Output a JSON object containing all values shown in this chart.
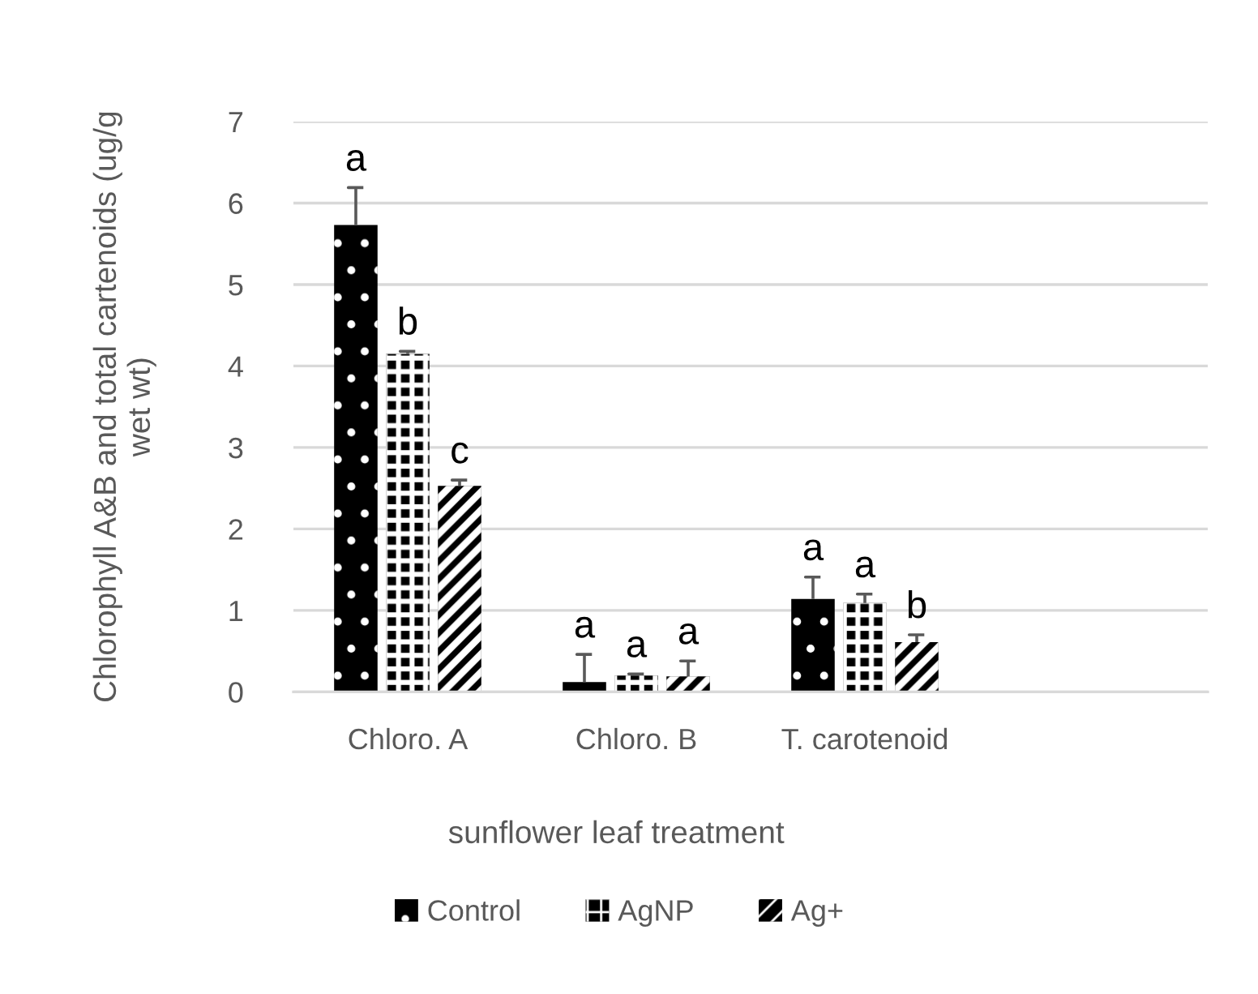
{
  "chart_data": {
    "type": "bar",
    "categories": [
      "Chloro. A",
      "Chloro. B",
      "T. carotenoid",
      null
    ],
    "xlabel": "sunflower leaf treatment",
    "ylabel": "Chlorophyll A&B and total cartenoids (ug/g\nwet wt)",
    "ylim": [
      0,
      7
    ],
    "yticks": [
      0,
      1,
      2,
      3,
      4,
      5,
      6,
      7
    ],
    "grid": "y",
    "legend": "bottom",
    "series": [
      {
        "name": "Control",
        "color": "#000000",
        "values": [
          5.73,
          0.12,
          1.14,
          null
        ],
        "errors": [
          [
            5.73,
            6.19
          ],
          [
            0.12,
            0.46
          ],
          [
            1.14,
            1.41
          ],
          null
        ],
        "value_labels": [
          "a",
          "a",
          "a",
          null
        ]
      },
      {
        "name": "AgNP",
        "color": "#000000",
        "values": [
          4.15,
          0.2,
          1.09,
          null
        ],
        "errors": [
          [
            4.15,
            4.18
          ],
          [
            0.2,
            0.22
          ],
          [
            1.09,
            1.2
          ],
          null
        ],
        "value_labels": [
          "b",
          "a",
          "a",
          null
        ]
      },
      {
        "name": "Ag+",
        "color": "#000000",
        "values": [
          2.53,
          0.19,
          0.61,
          null
        ],
        "errors": [
          [
            2.53,
            2.6
          ],
          [
            0.19,
            0.38
          ],
          [
            0.61,
            0.7
          ],
          null
        ],
        "value_labels": [
          "c",
          "a",
          "b",
          null
        ]
      }
    ]
  }
}
